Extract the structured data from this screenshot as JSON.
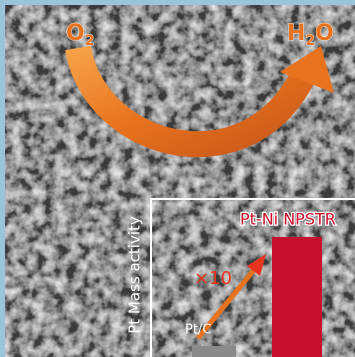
{
  "reaction": {
    "reactant": [
      "O",
      "2"
    ],
    "product": [
      "H",
      "2",
      "O"
    ]
  },
  "inset": {
    "y_label": "Pt Mass activity",
    "labels": [
      "Pt-Ni NPSTR",
      "×10",
      "Pt/C"
    ]
  }
}
